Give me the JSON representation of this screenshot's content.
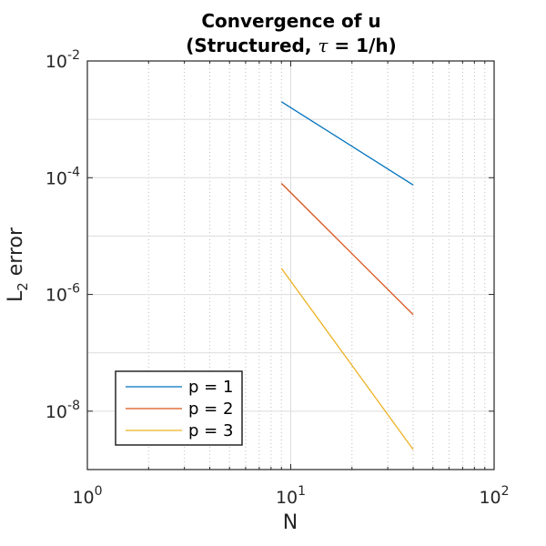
{
  "chart_data": {
    "type": "line",
    "title_line1": "Convergence of u",
    "title_line2_pre": "(Structured, ",
    "title_tau": "τ",
    "title_line2_post": " = 1/h)",
    "xlabel": "N",
    "ylabel_main": "L",
    "ylabel_sub": "2",
    "ylabel_rest": " error",
    "x_scale": "log",
    "y_scale": "log",
    "xlim": [
      1,
      100
    ],
    "ylim": [
      1e-09,
      0.01
    ],
    "x_ticks": [
      {
        "base": "10",
        "exp": "0",
        "value": 1
      },
      {
        "base": "10",
        "exp": "1",
        "value": 10
      },
      {
        "base": "10",
        "exp": "2",
        "value": 100
      }
    ],
    "y_ticks": [
      {
        "base": "10",
        "exp": "-2",
        "value": 0.01
      },
      {
        "base": "10",
        "exp": "-4",
        "value": 0.0001
      },
      {
        "base": "10",
        "exp": "-6",
        "value": 1e-06
      },
      {
        "base": "10",
        "exp": "-8",
        "value": 1e-08
      }
    ],
    "grid": true,
    "legend_position": "bottom-left",
    "series": [
      {
        "name": "p = 1",
        "color": "#0072BD",
        "x": [
          9,
          40
        ],
        "y": [
          0.002,
          7.5e-05
        ]
      },
      {
        "name": "p = 2",
        "color": "#D95319",
        "x": [
          9,
          40
        ],
        "y": [
          8e-05,
          4.5e-07
        ]
      },
      {
        "name": "p = 3",
        "color": "#EDB120",
        "x": [
          9,
          40
        ],
        "y": [
          2.8e-06,
          2.2e-09
        ]
      }
    ]
  }
}
